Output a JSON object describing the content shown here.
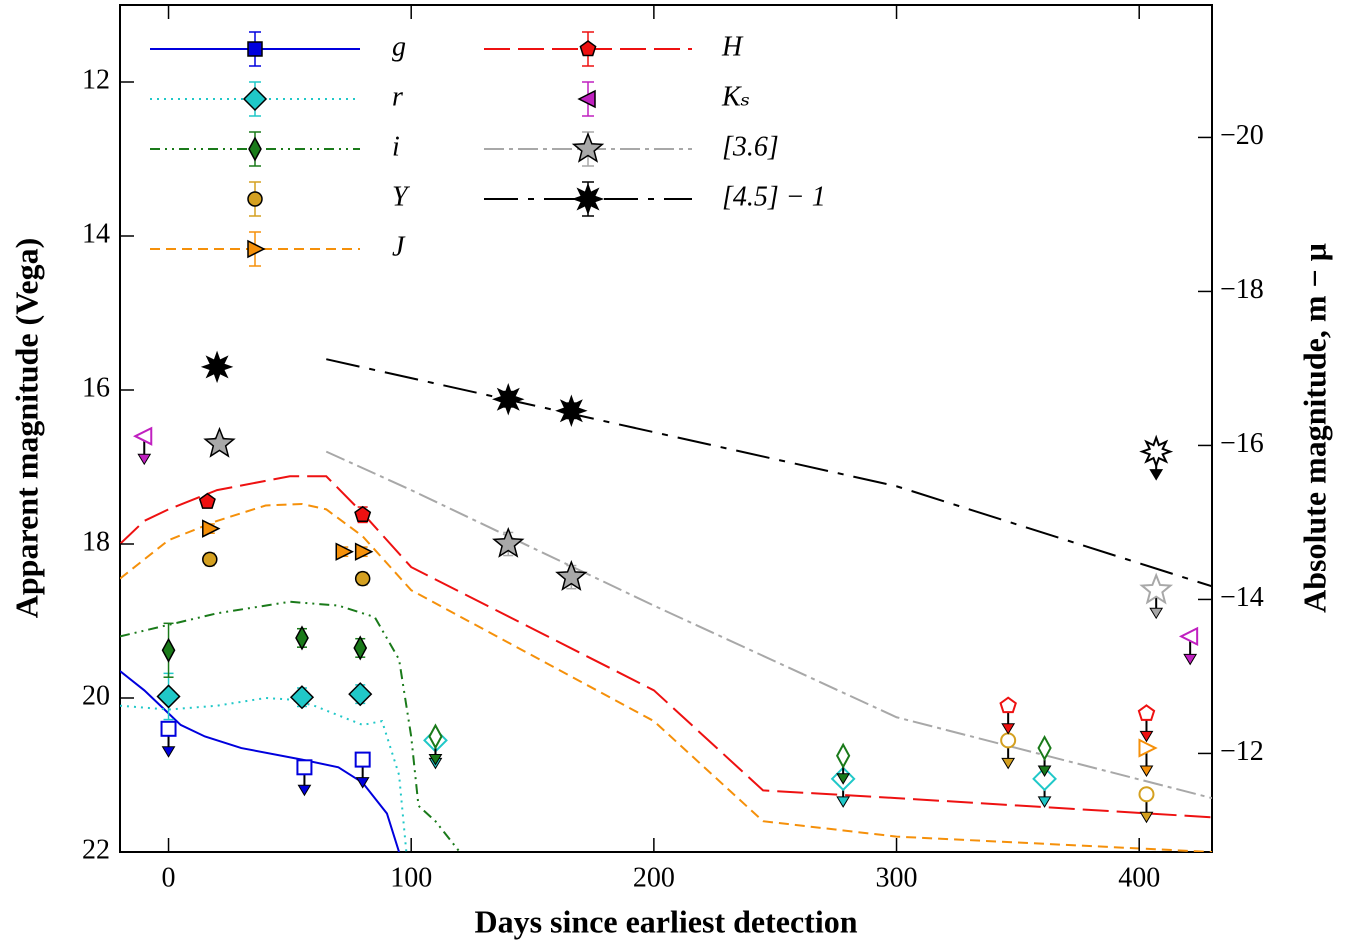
{
  "chart_data": {
    "type": "lightcurve",
    "xlabel": "Days since earliest detection",
    "ylabel": "Apparent magnitude (Vega)",
    "y2label": "Absolute magnitude, m − μ",
    "xlim": [
      -20,
      430
    ],
    "xticks": [
      0,
      100,
      200,
      300,
      400
    ],
    "ylim": [
      22,
      11
    ],
    "yticks": [
      12,
      14,
      16,
      18,
      20,
      22
    ],
    "y2lim": [
      -10.72,
      -21.72
    ],
    "y2ticks": [
      {
        "value": -20,
        "label": "−20"
      },
      {
        "value": -18,
        "label": "−18"
      },
      {
        "value": -16,
        "label": "−16"
      },
      {
        "value": -14,
        "label": "−14"
      },
      {
        "value": -12,
        "label": "−12"
      }
    ],
    "series": [
      {
        "name": "g",
        "color": "#0000dd",
        "marker": "square",
        "dash": "solid",
        "model": {
          "x": [
            -20,
            -10,
            0,
            5,
            15,
            30,
            55,
            70,
            80,
            90,
            95
          ],
          "y": [
            19.65,
            19.9,
            20.2,
            20.35,
            20.5,
            20.65,
            20.8,
            20.9,
            21.1,
            21.5,
            22
          ]
        },
        "x": [],
        "values": [],
        "errors": [],
        "limits": {
          "x": [
            0,
            56,
            80
          ],
          "values": [
            20.4,
            20.9,
            20.8
          ]
        }
      },
      {
        "name": "r",
        "color": "#20c8c8",
        "marker": "diamond",
        "dash": "dotted",
        "model": {
          "x": [
            -20,
            0,
            20,
            40,
            50,
            60,
            80,
            88,
            95,
            98
          ],
          "y": [
            20.1,
            20.15,
            20.1,
            20.0,
            20.02,
            20.1,
            20.35,
            20.3,
            21.0,
            22
          ]
        },
        "x": [
          0,
          55,
          79
        ],
        "values": [
          19.98,
          19.99,
          19.95
        ],
        "errors": [
          0.3,
          0.12,
          0.12
        ],
        "limits": {
          "x": [
            110,
            278,
            361
          ],
          "values": [
            20.55,
            21.05,
            21.05
          ]
        }
      },
      {
        "name": "i",
        "color": "#1a7a1a",
        "marker": "thin_diamond",
        "dash": "dashdotdot",
        "model": {
          "x": [
            -20,
            0,
            20,
            50,
            70,
            85,
            95,
            100,
            103,
            110,
            120
          ],
          "y": [
            19.2,
            19.05,
            18.9,
            18.75,
            18.8,
            18.95,
            19.5,
            20.5,
            21.4,
            21.6,
            22
          ]
        },
        "x": [
          0,
          55,
          79
        ],
        "values": [
          19.38,
          19.22,
          19.35
        ],
        "errors": [
          0.35,
          0.12,
          0.12
        ],
        "limits": {
          "x": [
            110,
            278,
            361
          ],
          "values": [
            20.5,
            20.75,
            20.65
          ]
        }
      },
      {
        "name": "Y",
        "color": "#d4a020",
        "marker": "circle",
        "dash": "none",
        "model": {
          "x": [],
          "y": []
        },
        "x": [
          17,
          80
        ],
        "values": [
          18.2,
          18.45
        ],
        "errors": [
          0.08,
          0.08
        ],
        "limits": {
          "x": [
            346,
            403
          ],
          "values": [
            20.55,
            21.25
          ]
        }
      },
      {
        "name": "J",
        "color": "#f5900a",
        "marker": "triangle_right",
        "dash": "dashed",
        "model": {
          "x": [
            -20,
            -10,
            0,
            20,
            40,
            55,
            65,
            80,
            100,
            200,
            245,
            300,
            430
          ],
          "y": [
            18.45,
            18.2,
            17.95,
            17.7,
            17.5,
            17.48,
            17.55,
            17.9,
            18.6,
            20.3,
            21.6,
            21.8,
            22.0
          ]
        },
        "x": [
          17,
          72,
          80
        ],
        "values": [
          17.8,
          18.1,
          18.1
        ],
        "errors": [
          0.06,
          0.06,
          0.06
        ],
        "limits": {
          "x": [
            403
          ],
          "values": [
            20.65
          ]
        }
      },
      {
        "name": "H",
        "color": "#ee1111",
        "marker": "pentagon",
        "dash": "longdash",
        "model": {
          "x": [
            -20,
            -10,
            0,
            20,
            50,
            65,
            80,
            100,
            200,
            245,
            300,
            430
          ],
          "y": [
            18.0,
            17.7,
            17.55,
            17.3,
            17.12,
            17.12,
            17.6,
            18.3,
            19.9,
            21.2,
            21.3,
            21.55
          ]
        },
        "x": [
          16,
          80
        ],
        "values": [
          17.45,
          17.62
        ],
        "errors": [
          0.06,
          0.1
        ],
        "limits": {
          "x": [
            346,
            403
          ],
          "values": [
            20.1,
            20.2
          ]
        }
      },
      {
        "name": "Kₛ",
        "color": "#c020c0",
        "marker": "triangle_left",
        "dash": "none",
        "model": {
          "x": [],
          "y": []
        },
        "x": [],
        "values": [],
        "errors": [],
        "limits": {
          "x": [
            -10,
            421
          ],
          "values": [
            16.6,
            19.2
          ]
        }
      },
      {
        "name": "[3.6]",
        "color": "#a8a8a8",
        "marker": "star",
        "dash": "dashdot",
        "model": {
          "x": [
            65,
            100,
            200,
            300,
            430
          ],
          "y": [
            16.8,
            17.3,
            18.8,
            20.25,
            21.3
          ]
        },
        "x": [
          21,
          140,
          166
        ],
        "values": [
          16.7,
          18.0,
          18.43
        ],
        "errors": [
          0.08,
          0.15,
          0.15
        ],
        "limits": {
          "x": [
            407
          ],
          "values": [
            18.6
          ]
        }
      },
      {
        "name": "[4.5] − 1",
        "color": "#000000",
        "marker": "star8",
        "dash": "longdashdot",
        "model": {
          "x": [
            65,
            300,
            430
          ],
          "y": [
            15.6,
            17.25,
            18.55
          ]
        },
        "x": [
          20,
          140,
          166
        ],
        "values": [
          15.7,
          16.12,
          16.27
        ],
        "errors": [
          0.08,
          0.1,
          0.1
        ],
        "limits": {
          "x": [
            407
          ],
          "values": [
            16.8
          ]
        }
      }
    ]
  }
}
